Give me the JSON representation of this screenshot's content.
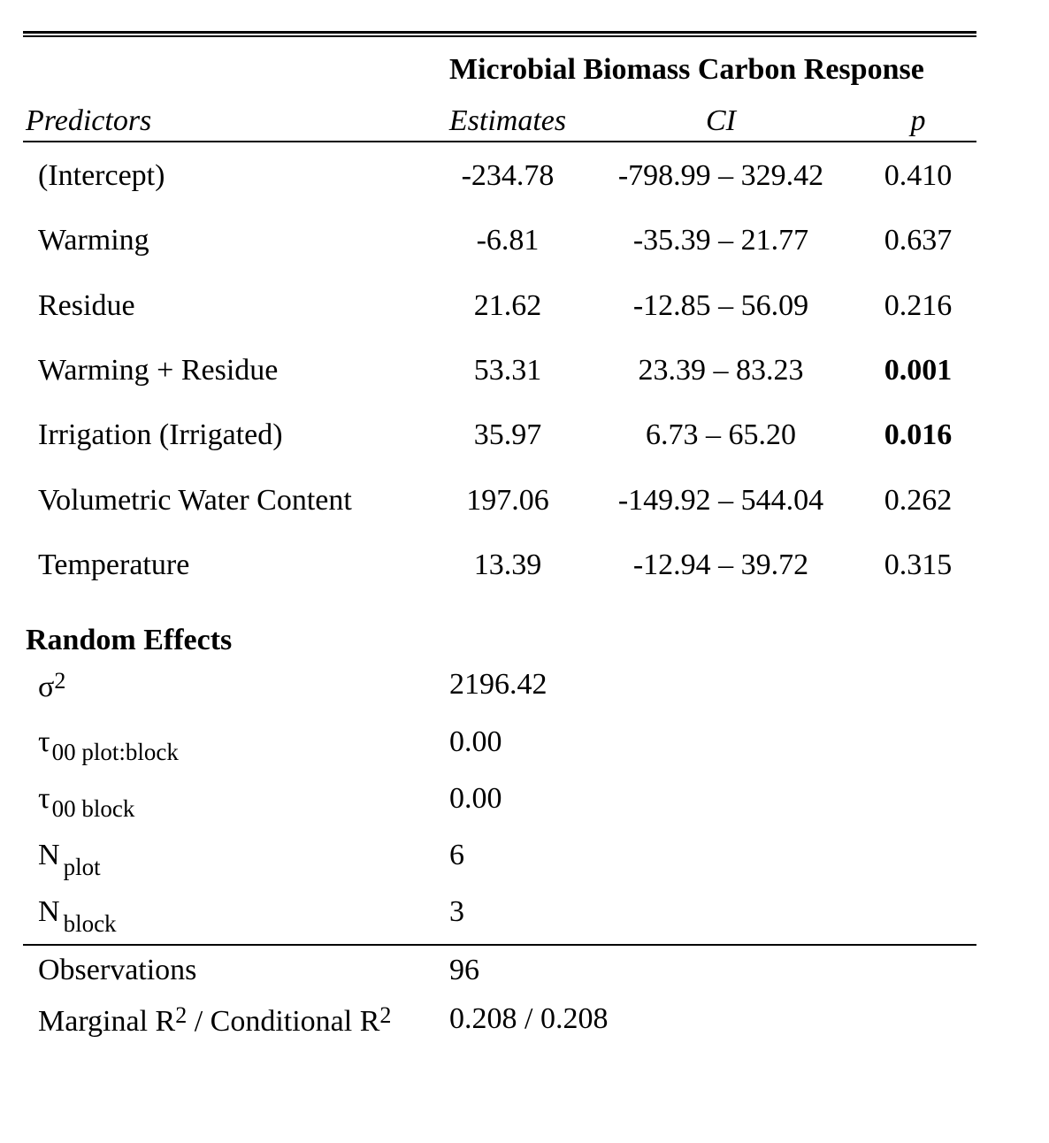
{
  "table": {
    "response_title": "Microbial Biomass Carbon Response",
    "headers": {
      "predictors": "Predictors",
      "estimates": "Estimates",
      "ci": "CI",
      "p": "p"
    },
    "rows": [
      {
        "predictor": "(Intercept)",
        "estimate": "-234.78",
        "ci": "-798.99 – 329.42",
        "p": "0.410",
        "significant": false
      },
      {
        "predictor": "Warming",
        "estimate": "-6.81",
        "ci": "-35.39 – 21.77",
        "p": "0.637",
        "significant": false
      },
      {
        "predictor": "Residue",
        "estimate": "21.62",
        "ci": "-12.85 – 56.09",
        "p": "0.216",
        "significant": false
      },
      {
        "predictor": "Warming + Residue",
        "estimate": "53.31",
        "ci": "23.39 – 83.23",
        "p": "0.001",
        "significant": true
      },
      {
        "predictor": "Irrigation (Irrigated)",
        "estimate": "35.97",
        "ci": "6.73 – 65.20",
        "p": "0.016",
        "significant": true
      },
      {
        "predictor": "Volumetric Water Content",
        "estimate": "197.06",
        "ci": "-149.92 – 544.04",
        "p": "0.262",
        "significant": false
      },
      {
        "predictor": "Temperature",
        "estimate": "13.39",
        "ci": "-12.94 – 39.72",
        "p": "0.315",
        "significant": false
      }
    ],
    "random_effects": {
      "heading": "Random Effects",
      "sigma2": {
        "symbol": "σ",
        "sup": "2",
        "value": "2196.42"
      },
      "tau_plot_block": {
        "symbol": "τ",
        "sub": "00 plot:block",
        "value": "0.00"
      },
      "tau_block": {
        "symbol": "τ",
        "sub": "00 block",
        "value": "0.00"
      },
      "n_plot": {
        "symbol": "N",
        "sub": "plot",
        "value": "6"
      },
      "n_block": {
        "symbol": "N",
        "sub": "block",
        "value": "3"
      }
    },
    "footer": {
      "observations_label": "Observations",
      "observations_value": "96",
      "r2_label_a": "Marginal R",
      "r2_sup_a": "2",
      "r2_label_b": " / Conditional R",
      "r2_sup_b": "2",
      "r2_value": "0.208 / 0.208"
    }
  }
}
